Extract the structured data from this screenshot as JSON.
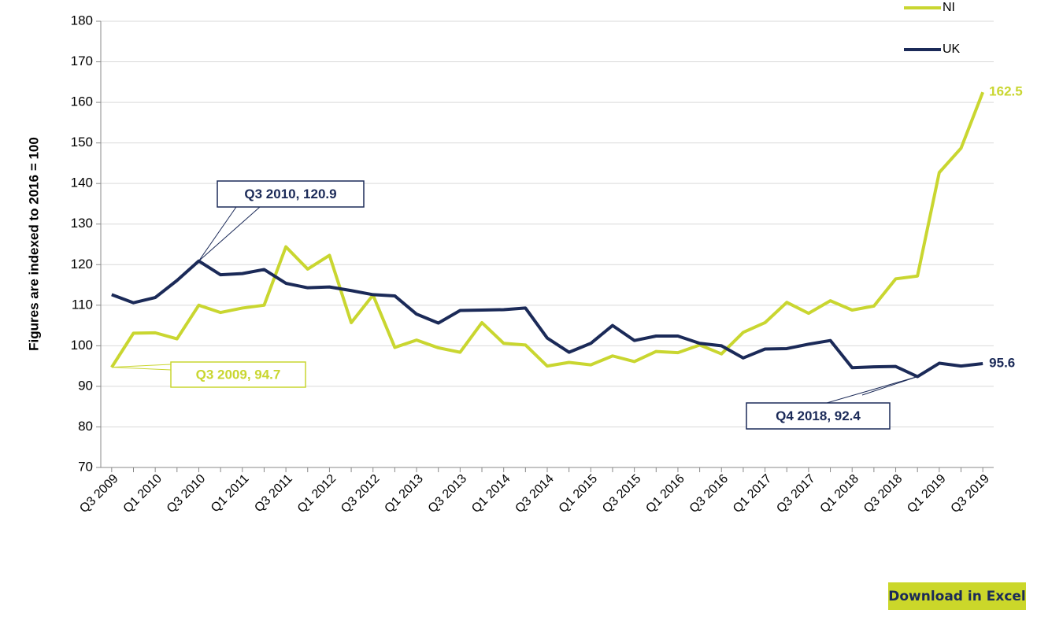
{
  "chart_data": {
    "type": "line",
    "y_label": "Figures are indexed to 2016 = 100",
    "categories": [
      "Q3 2009",
      null,
      "Q1 2010",
      null,
      "Q3 2010",
      null,
      "Q1 2011",
      null,
      "Q3 2011",
      null,
      "Q1 2012",
      null,
      "Q3 2012",
      null,
      "Q1 2013",
      null,
      "Q3 2013",
      null,
      "Q1 2014",
      null,
      "Q3 2014",
      null,
      "Q1 2015",
      null,
      "Q3 2015",
      null,
      "Q1 2016",
      null,
      "Q3 2016",
      null,
      "Q1 2017",
      null,
      "Q3 2017",
      null,
      "Q1 2018",
      null,
      "Q3 2018",
      null,
      "Q1 2019",
      null,
      "Q3 2019"
    ],
    "series": [
      {
        "name": "NI",
        "color": "#c9d630",
        "values": [
          94.7,
          103.1,
          103.2,
          101.7,
          110.0,
          108.2,
          109.3,
          110.0,
          124.4,
          118.9,
          122.3,
          105.7,
          112.5,
          99.6,
          101.4,
          99.5,
          98.4,
          105.7,
          100.6,
          100.2,
          95.0,
          95.9,
          95.3,
          97.5,
          96.1,
          98.6,
          98.3,
          100.2,
          98.0,
          103.3,
          105.7,
          110.7,
          108.0,
          111.1,
          108.8,
          109.8,
          116.5,
          117.2,
          142.7,
          148.7,
          162.5
        ],
        "value_labels": [
          "Q3 2009, 94.7",
          null,
          null,
          null,
          null,
          null,
          null,
          null,
          null,
          null,
          null,
          null,
          null,
          null,
          null,
          null,
          null,
          null,
          null,
          null,
          null,
          null,
          null,
          null,
          null,
          null,
          null,
          null,
          null,
          null,
          null,
          null,
          null,
          null,
          null,
          null,
          null,
          null,
          null,
          null,
          "162.5"
        ]
      },
      {
        "name": "UK",
        "color": "#1b2a58",
        "values": [
          112.6,
          110.6,
          111.9,
          116.1,
          120.9,
          117.5,
          117.8,
          118.8,
          115.4,
          114.3,
          114.5,
          113.6,
          112.6,
          112.3,
          107.8,
          105.6,
          108.7,
          108.8,
          108.9,
          109.3,
          101.9,
          98.4,
          100.6,
          105.0,
          101.3,
          102.4,
          102.4,
          100.6,
          100.0,
          97.0,
          99.2,
          99.3,
          100.4,
          101.3,
          94.6,
          94.8,
          94.9,
          92.4,
          95.7,
          95.0,
          95.6
        ],
        "value_labels": [
          null,
          null,
          null,
          null,
          "Q3 2010, 120.9",
          null,
          null,
          null,
          null,
          null,
          null,
          null,
          null,
          null,
          null,
          null,
          null,
          null,
          null,
          null,
          null,
          null,
          null,
          null,
          null,
          null,
          null,
          null,
          null,
          null,
          null,
          null,
          null,
          null,
          null,
          null,
          null,
          "Q4 2018, 92.4",
          null,
          null,
          "95.6"
        ]
      }
    ],
    "ylim": [
      70,
      180
    ],
    "yticks": [
      70,
      80,
      90,
      100,
      110,
      120,
      130,
      140,
      150,
      160,
      170,
      180
    ],
    "grid": true,
    "legend": "top-right"
  },
  "button": {
    "label": "Download in Excel"
  }
}
